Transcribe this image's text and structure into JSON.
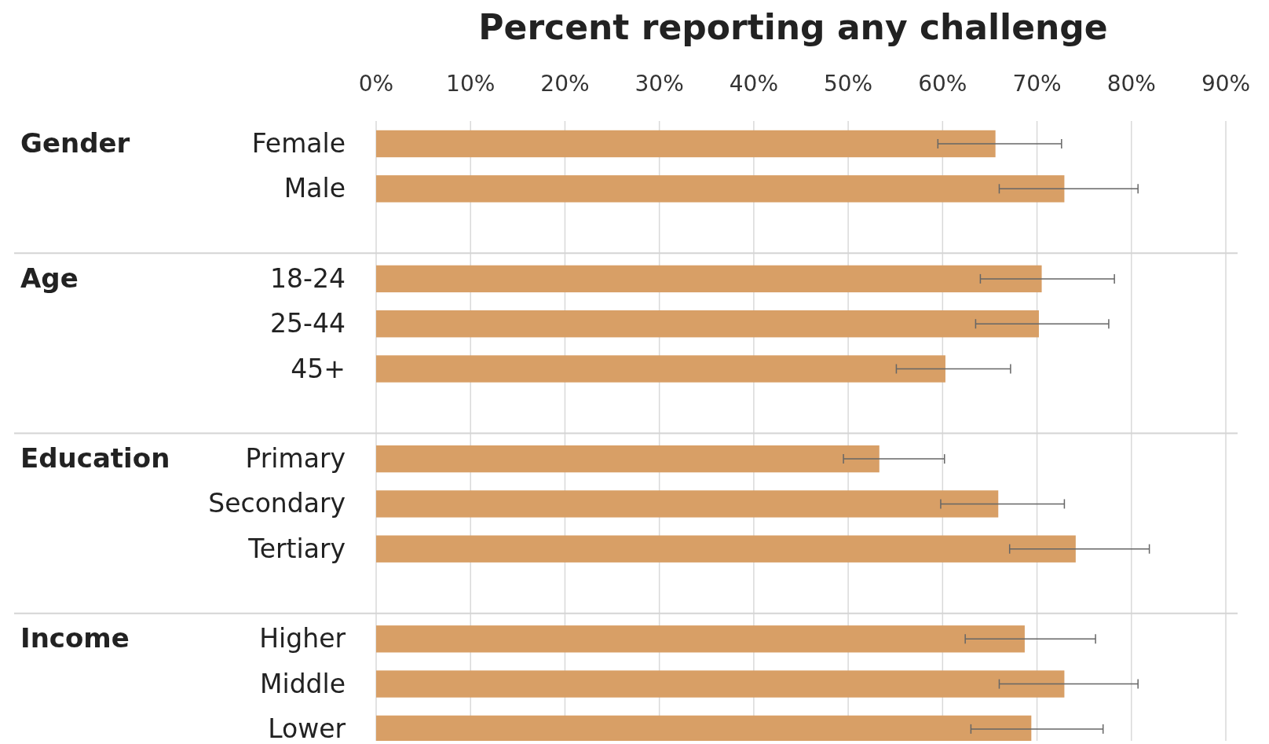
{
  "chart_data": {
    "type": "bar",
    "orientation": "horizontal",
    "title": "Percent reporting any challenge",
    "categories": [
      "Female",
      "Male",
      null,
      "18-24",
      "25-44",
      "45+",
      null,
      "Primary",
      "Secondary",
      "Tertiary",
      null,
      "Higher",
      "Middle",
      "Lower"
    ],
    "values": [
      65.6,
      72.9,
      null,
      70.5,
      70.2,
      60.3,
      null,
      53.3,
      65.9,
      74.1,
      null,
      68.7,
      72.9,
      69.4
    ],
    "errors": [
      [
        59.5,
        72.6
      ],
      [
        66.0,
        80.7
      ],
      null,
      [
        64.0,
        78.2
      ],
      [
        63.5,
        77.6
      ],
      [
        55.1,
        67.2
      ],
      null,
      [
        49.5,
        60.2
      ],
      [
        59.8,
        72.9
      ],
      [
        67.1,
        81.9
      ],
      null,
      [
        62.4,
        76.2
      ],
      [
        66.0,
        80.7
      ],
      [
        63.0,
        77.0
      ]
    ],
    "color": "#d89f66",
    "xlim": [
      0,
      90
    ],
    "xticks": [
      {
        "value": 0,
        "label": "0%"
      },
      {
        "value": 10,
        "label": "10%"
      },
      {
        "value": 20,
        "label": "20%"
      },
      {
        "value": 30,
        "label": "30%"
      },
      {
        "value": 40,
        "label": "40%"
      },
      {
        "value": 50,
        "label": "50%"
      },
      {
        "value": 60,
        "label": "60%"
      },
      {
        "value": 70,
        "label": "70%"
      },
      {
        "value": 80,
        "label": "80%"
      },
      {
        "value": 90,
        "label": "90%"
      }
    ],
    "grid": "x",
    "annotations": [
      "Gender",
      "Age",
      "Education",
      "Income"
    ]
  }
}
